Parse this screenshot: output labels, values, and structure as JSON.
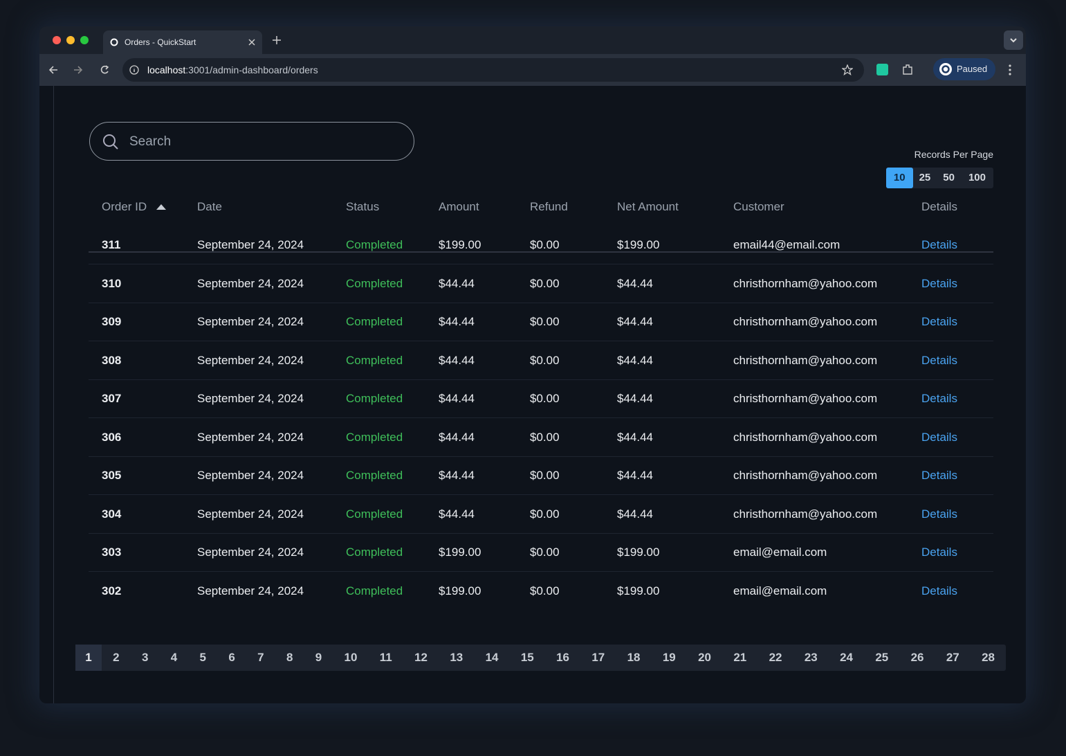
{
  "browser": {
    "tab_title": "Orders - QuickStart",
    "url_host": "localhost",
    "url_rest": ":3001/admin-dashboard/orders",
    "profile": "Paused"
  },
  "search": {
    "placeholder": "Search"
  },
  "records_per_page": {
    "label": "Records Per Page",
    "options": [
      "10",
      "25",
      "50",
      "100"
    ],
    "selected": 0
  },
  "table": {
    "headers": [
      "Order ID",
      "Date",
      "Status",
      "Amount",
      "Refund",
      "Net Amount",
      "Customer",
      "Details"
    ],
    "rows": [
      [
        "311",
        "September 24, 2024",
        "Completed",
        "$199.00",
        "$0.00",
        "$199.00",
        "email44@email.com",
        "Details"
      ],
      [
        "310",
        "September 24, 2024",
        "Completed",
        "$44.44",
        "$0.00",
        "$44.44",
        "christhornham@yahoo.com",
        "Details"
      ],
      [
        "309",
        "September 24, 2024",
        "Completed",
        "$44.44",
        "$0.00",
        "$44.44",
        "christhornham@yahoo.com",
        "Details"
      ],
      [
        "308",
        "September 24, 2024",
        "Completed",
        "$44.44",
        "$0.00",
        "$44.44",
        "christhornham@yahoo.com",
        "Details"
      ],
      [
        "307",
        "September 24, 2024",
        "Completed",
        "$44.44",
        "$0.00",
        "$44.44",
        "christhornham@yahoo.com",
        "Details"
      ],
      [
        "306",
        "September 24, 2024",
        "Completed",
        "$44.44",
        "$0.00",
        "$44.44",
        "christhornham@yahoo.com",
        "Details"
      ],
      [
        "305",
        "September 24, 2024",
        "Completed",
        "$44.44",
        "$0.00",
        "$44.44",
        "christhornham@yahoo.com",
        "Details"
      ],
      [
        "304",
        "September 24, 2024",
        "Completed",
        "$44.44",
        "$0.00",
        "$44.44",
        "christhornham@yahoo.com",
        "Details"
      ],
      [
        "303",
        "September 24, 2024",
        "Completed",
        "$199.00",
        "$0.00",
        "$199.00",
        "email@email.com",
        "Details"
      ],
      [
        "302",
        "September 24, 2024",
        "Completed",
        "$199.00",
        "$0.00",
        "$199.00",
        "email@email.com",
        "Details"
      ]
    ]
  },
  "pagination": {
    "pages": [
      "1",
      "2",
      "3",
      "4",
      "5",
      "6",
      "7",
      "8",
      "9",
      "10",
      "11",
      "12",
      "13",
      "14",
      "15",
      "16",
      "17",
      "18",
      "19",
      "20",
      "21",
      "22",
      "23",
      "24",
      "25",
      "26",
      "27",
      "28"
    ],
    "current": 0
  }
}
